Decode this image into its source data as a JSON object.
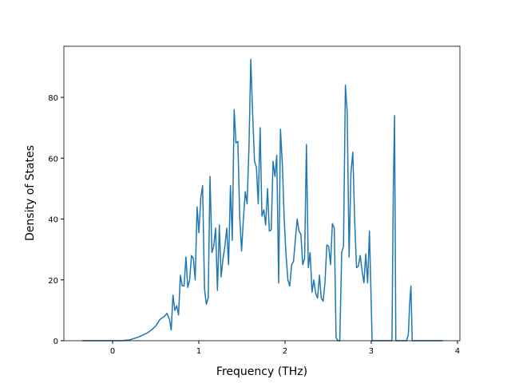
{
  "chart_data": {
    "type": "line",
    "xlabel": "Frequency (THz)",
    "ylabel": "Density of States",
    "x": [
      -0.35,
      0.1,
      0.2,
      0.3,
      0.4,
      0.45,
      0.5,
      0.55,
      0.6,
      0.63,
      0.66,
      0.68,
      0.7,
      0.722,
      0.743,
      0.765,
      0.786,
      0.808,
      0.829,
      0.851,
      0.872,
      0.894,
      0.915,
      0.937,
      0.958,
      0.98,
      1.001,
      1.023,
      1.044,
      1.066,
      1.087,
      1.109,
      1.13,
      1.152,
      1.173,
      1.195,
      1.216,
      1.238,
      1.259,
      1.281,
      1.302,
      1.324,
      1.345,
      1.367,
      1.388,
      1.41,
      1.431,
      1.453,
      1.474,
      1.496,
      1.517,
      1.539,
      1.56,
      1.582,
      1.603,
      1.625,
      1.646,
      1.668,
      1.689,
      1.711,
      1.732,
      1.754,
      1.775,
      1.797,
      1.818,
      1.84,
      1.861,
      1.883,
      1.904,
      1.926,
      1.947,
      1.969,
      1.99,
      2.012,
      2.033,
      2.055,
      2.076,
      2.098,
      2.119,
      2.141,
      2.162,
      2.184,
      2.205,
      2.227,
      2.248,
      2.27,
      2.291,
      2.313,
      2.334,
      2.356,
      2.377,
      2.399,
      2.42,
      2.442,
      2.463,
      2.485,
      2.506,
      2.528,
      2.549,
      2.571,
      2.592,
      2.614,
      2.635,
      2.657,
      2.678,
      2.7,
      2.721,
      2.743,
      2.764,
      2.786,
      2.807,
      2.829,
      2.85,
      2.872,
      2.893,
      2.915,
      2.936,
      2.958,
      2.979,
      3.01,
      3.24,
      3.255,
      3.27,
      3.285,
      3.41,
      3.43,
      3.445,
      3.46,
      3.475,
      3.83
    ],
    "series": [
      {
        "color": "#1f77b4",
        "values": [
          0,
          0,
          0.3,
          1.2,
          2.5,
          3.5,
          4.8,
          7,
          8,
          9,
          7,
          3.5,
          15,
          10,
          11.5,
          8.5,
          21.5,
          18,
          18,
          27.5,
          17.5,
          20,
          28,
          27,
          20,
          44,
          35.5,
          47,
          51,
          17,
          12,
          14,
          54,
          29,
          31,
          37,
          16.5,
          38,
          21,
          27,
          31,
          37,
          25,
          51,
          33,
          76,
          65,
          65.5,
          41,
          29.5,
          40,
          49,
          45,
          64,
          92.5,
          74,
          59,
          57,
          45,
          70,
          41,
          43,
          38,
          50,
          36,
          36.5,
          59,
          54,
          61,
          19,
          69.5,
          58,
          40,
          28,
          20,
          18,
          25,
          26,
          33,
          40,
          36,
          35,
          25,
          27,
          64.5,
          24,
          29,
          16,
          20,
          15.5,
          14,
          21.5,
          14,
          13,
          19,
          31.5,
          31,
          25,
          38.5,
          37,
          1,
          0,
          0,
          29,
          31,
          84,
          75,
          27.5,
          55,
          62,
          40,
          24,
          24.5,
          28,
          23,
          19,
          28.5,
          19,
          36,
          0,
          0,
          48,
          74,
          0,
          0,
          2,
          12,
          18,
          0,
          0
        ]
      }
    ],
    "xlim": [
      -0.565,
      4.028
    ],
    "ylim": [
      0,
      96.8
    ],
    "xticks": [
      0,
      1,
      2,
      3,
      4
    ],
    "yticks": [
      0,
      20,
      40,
      60,
      80
    ],
    "grid": false
  }
}
